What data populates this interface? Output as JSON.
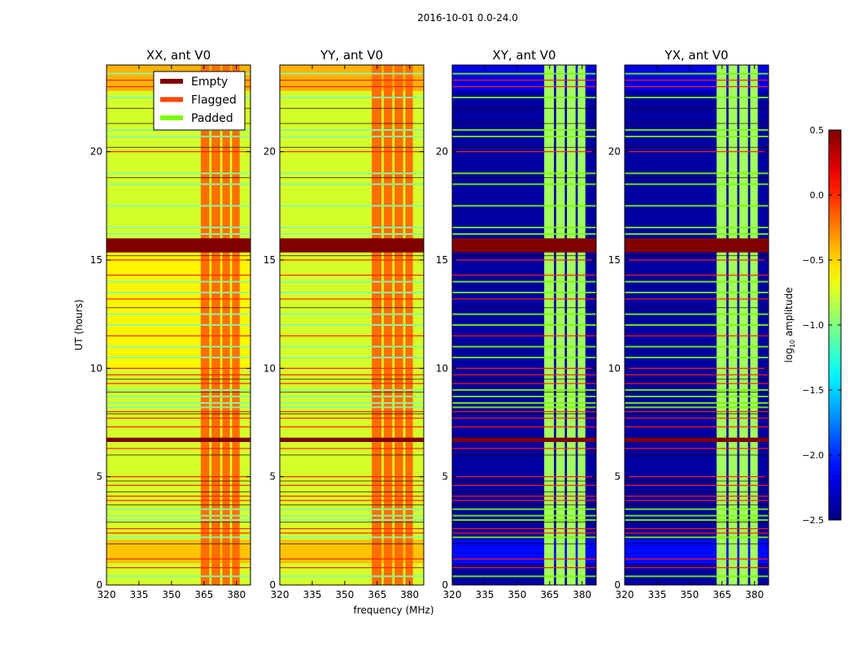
{
  "suptitle": "2016-10-01 0.0-24.0",
  "chart_data": {
    "type": "heatmap",
    "title": "2016-10-01 0.0-24.0",
    "xlabel": "frequency (MHz)",
    "ylabel": "UT (hours)",
    "xlim": [
      320,
      386.5
    ],
    "ylim": [
      0,
      24
    ],
    "xticks": [
      320,
      335,
      350,
      365,
      380
    ],
    "xtick_labels": [
      "320",
      "335",
      "350",
      "365",
      "380"
    ],
    "yticks": [
      0,
      5,
      10,
      15,
      20
    ],
    "ytick_labels": [
      "0",
      "5",
      "10",
      "15",
      "20"
    ],
    "colorbar": {
      "label": "log10 amplitude",
      "label_main": "log",
      "label_sub": "10",
      "label_rest": " amplitude",
      "colormap": "jet",
      "range": [
        -2.5,
        0.5
      ],
      "ticks": [
        0.5,
        0.0,
        -0.5,
        -1.0,
        -1.5,
        -2.0,
        -2.5
      ],
      "tick_labels": [
        "0.5",
        "0.0",
        "−0.5",
        "−1.0",
        "−1.5",
        "−2.0",
        "−2.5"
      ]
    },
    "legend": {
      "placement": "upper-right of first panel",
      "entries": [
        {
          "label": "Empty",
          "color": "#800000"
        },
        {
          "label": "Flagged",
          "color": "#ff4500"
        },
        {
          "label": "Padded",
          "color": "#7cfc00"
        }
      ]
    },
    "panels": [
      {
        "title": "XX, ant V0",
        "base_value": -0.75,
        "rfi_value": -0.2,
        "rfi_channels": [
          [
            363.5,
            367.5
          ],
          [
            368.5,
            372.5
          ],
          [
            373.5,
            377
          ],
          [
            378,
            381.5
          ]
        ],
        "bands": [
          {
            "ut": [
              1.0,
              2.1
            ],
            "value": -0.45
          },
          {
            "ut": [
              10.0,
              15.3
            ],
            "value": -0.6
          },
          {
            "ut": [
              22.8,
              24
            ],
            "value": -0.4
          }
        ]
      },
      {
        "title": "YY, ant V0",
        "base_value": -0.75,
        "rfi_value": -0.2,
        "rfi_channels": [
          [
            362.5,
            367
          ],
          [
            368,
            372
          ],
          [
            373,
            377
          ],
          [
            378,
            381.5
          ]
        ],
        "bands": [
          {
            "ut": [
              1.0,
              2.1
            ],
            "value": -0.45
          },
          {
            "ut": [
              22.8,
              24
            ],
            "value": -0.4
          }
        ]
      },
      {
        "title": "XY, ant V0",
        "base_value": -2.4,
        "rfi_value": -0.9,
        "rfi_channels": [
          [
            362.5,
            367
          ],
          [
            368,
            372
          ],
          [
            373,
            377
          ],
          [
            378,
            381.5
          ]
        ],
        "bands": [
          {
            "ut": [
              1.0,
              2.1
            ],
            "value": -2.1
          },
          {
            "ut": [
              22.8,
              24
            ],
            "value": -2.2
          }
        ]
      },
      {
        "title": "YX, ant V0",
        "base_value": -2.4,
        "rfi_value": -0.9,
        "rfi_channels": [
          [
            362.5,
            367
          ],
          [
            368,
            372
          ],
          [
            373,
            377
          ],
          [
            378,
            381.5
          ]
        ],
        "bands": [
          {
            "ut": [
              1.0,
              2.1
            ],
            "value": -2.1
          },
          {
            "ut": [
              22.8,
              24
            ],
            "value": -2.2
          }
        ]
      }
    ],
    "empty_rows_ut": [
      [
        15.35,
        16.0
      ],
      [
        6.6,
        6.8
      ]
    ],
    "empty_lines_ut": [
      22.0,
      21.3,
      20.2,
      18.8,
      15.2,
      12.8,
      9.5,
      8.9,
      7.9,
      6.0,
      4.8,
      4.3,
      3.7,
      2.9,
      1.9
    ],
    "flagged_lines_ut": [
      23.3,
      23.0,
      20.0,
      15.0,
      14.3,
      13.2,
      11.5,
      10.0,
      9.7,
      9.3,
      8.0,
      7.7,
      7.3,
      6.3,
      5.0,
      4.6,
      4.1,
      3.9,
      2.6,
      2.4,
      1.2,
      0.8
    ],
    "padded_lines_ut": [
      23.6,
      22.5,
      21.0,
      20.7,
      19.0,
      18.5,
      17.5,
      16.5,
      16.2,
      14.0,
      13.5,
      12.5,
      12.0,
      11.0,
      10.5,
      9.0,
      8.7,
      8.4,
      8.2,
      3.5,
      3.2,
      3.0,
      2.2,
      0.4
    ]
  }
}
